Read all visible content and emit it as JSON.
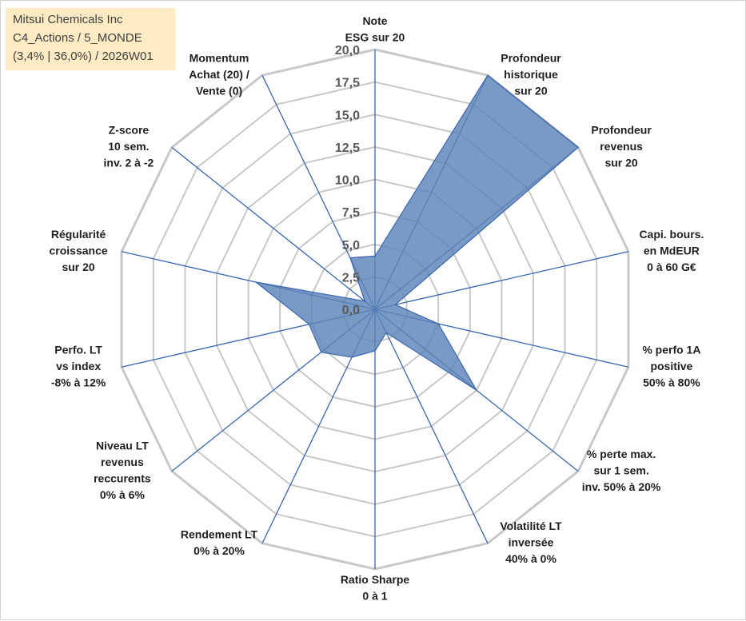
{
  "info_box": {
    "line1": "Mitsui Chemicals Inc",
    "line2": "C4_Actions / 5_MONDE",
    "line3": "(3,4% | 36,0%) / 2026W01"
  },
  "colors": {
    "grid": "#c8c8c8",
    "spoke": "#3a66b0",
    "fill": "#5b84b8",
    "stroke": "#3a66b0"
  },
  "chart_data": {
    "type": "radar",
    "title": "",
    "rlim": [
      0,
      20
    ],
    "ticks": [
      "0,0",
      "2,5",
      "5,0",
      "7,5",
      "10,0",
      "12,5",
      "15,0",
      "17,5",
      "20,0"
    ],
    "axes": [
      {
        "label": [
          "Note",
          "ESG sur 20"
        ],
        "value": 4.1
      },
      {
        "label": [
          "Profondeur",
          "historique",
          "sur 20"
        ],
        "value": 20
      },
      {
        "label": [
          "Profondeur",
          "revenus",
          "sur 20"
        ],
        "value": 20
      },
      {
        "label": [
          "Capi. bours.",
          "en MdEUR",
          "0 à 60 G€"
        ],
        "value": 1.6
      },
      {
        "label": [
          "% perfo 1A",
          "positive",
          "50% à 80%"
        ],
        "value": 5
      },
      {
        "label": [
          "% perte max.",
          "sur 1 sem.",
          "inv. 50% à 20%"
        ],
        "value": 10
      },
      {
        "label": [
          "Volatilité LT",
          "inversée",
          "40% à 0%"
        ],
        "value": 2
      },
      {
        "label": [
          "Ratio Sharpe",
          "0 à 1"
        ],
        "value": 3.2
      },
      {
        "label": [
          "Rendement LT",
          "0% à 20%"
        ],
        "value": 4.1
      },
      {
        "label": [
          "Niveau LT",
          "revenus",
          "reccurents",
          "0% à 6%"
        ],
        "value": 5.3
      },
      {
        "label": [
          "Perfo. LT",
          "vs index",
          "-8% à 12%"
        ],
        "value": 5.2
      },
      {
        "label": [
          "Régularité",
          "croissance",
          "sur 20"
        ],
        "value": 9.4
      },
      {
        "label": [
          "Z-score",
          "10 sem.",
          "inv. 2 à -2"
        ],
        "value": 1
      },
      {
        "label": [
          "Momentum",
          "Achat (20) /",
          "Vente (0)"
        ],
        "value": 4.4
      }
    ]
  }
}
